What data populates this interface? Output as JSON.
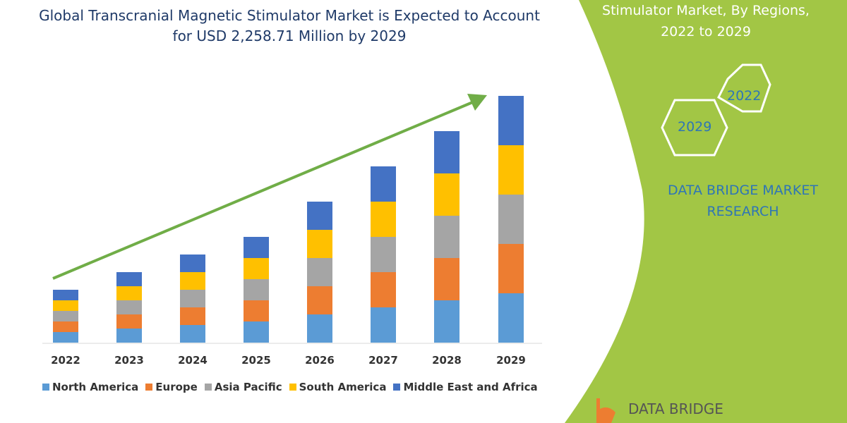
{
  "header": {
    "title": "Global Transcranial Magnetic Stimulator Market is Expected to Account for USD 2,258.71 Million by 2029"
  },
  "side": {
    "title": "Stimulator Market, By Regions, 2022 to 2029",
    "hex_a": "2022",
    "hex_b": "2029",
    "brand": "DATA BRIDGE MARKET RESEARCH",
    "logo": "DATA BRIDGE"
  },
  "colors": {
    "panel": "#a2c645",
    "arrow": "#70ad47"
  },
  "chart_data": {
    "type": "bar",
    "stacked": true,
    "grid": false,
    "legend": "bottom",
    "categories": [
      "2022",
      "2023",
      "2024",
      "2025",
      "2026",
      "2027",
      "2028",
      "2029"
    ],
    "series": [
      {
        "name": "North America",
        "color": "#5b9bd5",
        "values": [
          15,
          20,
          25,
          30,
          40,
          50,
          60,
          70
        ]
      },
      {
        "name": "Europe",
        "color": "#ed7d31",
        "values": [
          15,
          20,
          25,
          30,
          40,
          50,
          60,
          70
        ]
      },
      {
        "name": "Asia Pacific",
        "color": "#a5a5a5",
        "values": [
          15,
          20,
          25,
          30,
          40,
          50,
          60,
          70
        ]
      },
      {
        "name": "South America",
        "color": "#ffc000",
        "values": [
          15,
          20,
          25,
          30,
          40,
          50,
          60,
          70
        ]
      },
      {
        "name": "Middle East and Africa",
        "color": "#4472c4",
        "values": [
          15,
          20,
          25,
          30,
          40,
          50,
          60,
          70
        ]
      }
    ]
  }
}
